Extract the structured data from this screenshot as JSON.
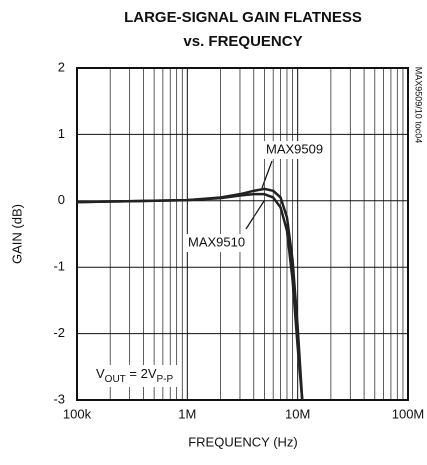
{
  "chart_data": {
    "type": "line",
    "title": "LARGE-SIGNAL GAIN FLATNESS",
    "subtitle": "vs. FREQUENCY",
    "xlabel": "FREQUENCY (Hz)",
    "ylabel": "GAIN (dB)",
    "side_note": "MAX9509/10 toc04",
    "annotation": [
      {
        "text": "V"
      },
      {
        "text": "OUT",
        "sub": true
      },
      {
        "text": " = 2V"
      },
      {
        "text": "P-P",
        "sub": true
      }
    ],
    "x": [
      100000,
      200000,
      500000,
      1000000,
      2000000,
      3000000,
      4000000,
      5000000,
      6000000,
      7000000,
      8000000,
      9000000,
      10000000,
      11000000
    ],
    "series": [
      {
        "name": "MAX9509",
        "color": "#222222",
        "values": [
          -0.02,
          -0.01,
          0,
          0.01,
          0.05,
          0.1,
          0.15,
          0.18,
          0.15,
          0.05,
          -0.25,
          -0.9,
          -1.9,
          -3
        ]
      },
      {
        "name": "MAX9510",
        "color": "#222222",
        "values": [
          -0.02,
          -0.01,
          0,
          0.01,
          0.04,
          0.08,
          0.1,
          0.1,
          0.05,
          -0.1,
          -0.45,
          -1.2,
          -2.2,
          -3
        ]
      }
    ],
    "xlim": [
      100000,
      100000000
    ],
    "xticks": [
      {
        "value": 100000,
        "label": "100k"
      },
      {
        "value": 1000000,
        "label": "1M"
      },
      {
        "value": 10000000,
        "label": "10M"
      },
      {
        "value": 100000000,
        "label": "100M"
      }
    ],
    "xscale": "log",
    "ylim": [
      -3,
      2
    ],
    "yticks": [
      2,
      1,
      0,
      -1,
      -2,
      -3
    ],
    "grid": true,
    "minor_grid": true
  }
}
